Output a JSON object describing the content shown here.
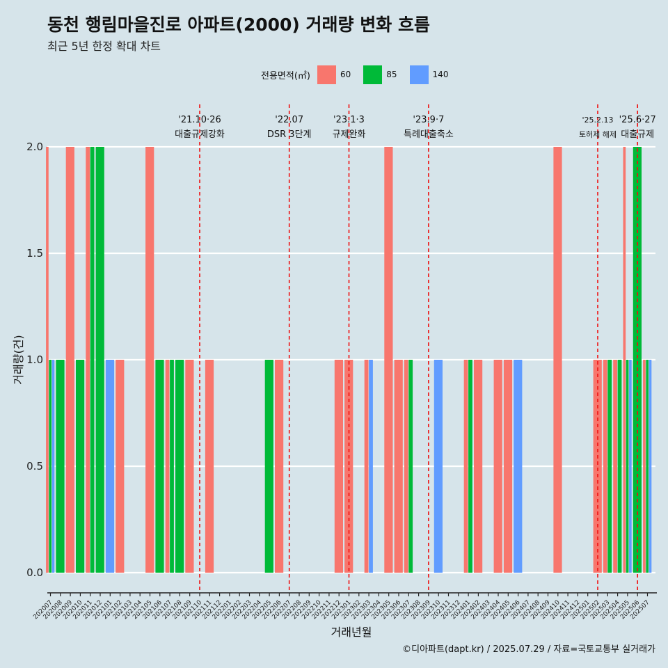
{
  "title": "동천 행림마을진로 아파트(2000) 거래량 변화 흐름",
  "subtitle": "최근 5년 한정 확대 차트",
  "caption": "©디아파트(dapt.kr) / 2025.07.29 / 자료=국토교통부 실거래가",
  "legend": {
    "title": "전용면적(㎡)",
    "items": [
      {
        "label": "60",
        "color": "#f8766d"
      },
      {
        "label": "85",
        "color": "#00ba38"
      },
      {
        "label": "140",
        "color": "#619cff"
      }
    ]
  },
  "chart_data": {
    "type": "bar",
    "xlabel": "거래년월",
    "ylabel": "거래량(건)",
    "ylim": [
      0,
      2
    ],
    "yticks": [
      0.0,
      0.5,
      1.0,
      1.5,
      2.0
    ],
    "ytick_labels": [
      "0.0",
      "0.5",
      "1.0",
      "1.5",
      "2.0"
    ],
    "categories": [
      "202007",
      "202008",
      "202009",
      "202010",
      "202011",
      "202012",
      "202101",
      "202102",
      "202103",
      "202104",
      "202105",
      "202106",
      "202107",
      "202108",
      "202109",
      "202110",
      "202111",
      "202112",
      "202201",
      "202202",
      "202203",
      "202204",
      "202205",
      "202206",
      "202207",
      "202208",
      "202209",
      "202210",
      "202211",
      "202212",
      "202301",
      "202302",
      "202303",
      "202304",
      "202305",
      "202306",
      "202307",
      "202308",
      "202309",
      "202310",
      "202311",
      "202312",
      "202401",
      "202402",
      "202403",
      "202404",
      "202405",
      "202406",
      "202407",
      "202408",
      "202409",
      "202410",
      "202411",
      "202412",
      "202501",
      "202502",
      "202503",
      "202504",
      "202505",
      "202506",
      "202507"
    ],
    "series": [
      {
        "name": "60",
        "color": "#f8766d",
        "values": [
          2,
          0,
          2,
          0,
          2,
          0,
          0,
          1,
          0,
          0,
          2,
          0,
          1,
          0,
          1,
          0,
          1,
          0,
          0,
          0,
          0,
          0,
          0,
          1,
          0,
          0,
          0,
          0,
          0,
          1,
          1,
          0,
          1,
          0,
          2,
          1,
          1,
          0,
          0,
          0,
          0,
          0,
          1,
          1,
          0,
          1,
          1,
          0,
          0,
          0,
          0,
          2,
          0,
          0,
          0,
          1,
          1,
          1,
          2,
          0,
          1
        ]
      },
      {
        "name": "85",
        "color": "#00ba38",
        "values": [
          1,
          1,
          0,
          1,
          2,
          2,
          0,
          0,
          0,
          0,
          0,
          1,
          1,
          1,
          0,
          0,
          0,
          0,
          0,
          0,
          0,
          0,
          1,
          0,
          0,
          0,
          0,
          0,
          0,
          0,
          0,
          0,
          0,
          0,
          0,
          0,
          1,
          0,
          0,
          0,
          0,
          0,
          1,
          0,
          0,
          0,
          0,
          0,
          0,
          0,
          0,
          0,
          0,
          0,
          0,
          0,
          1,
          1,
          1,
          2,
          1
        ]
      },
      {
        "name": "140",
        "color": "#619cff",
        "values": [
          1,
          0,
          0,
          0,
          0,
          0,
          1,
          0,
          0,
          0,
          0,
          0,
          0,
          0,
          0,
          0,
          0,
          0,
          0,
          0,
          0,
          0,
          0,
          0,
          0,
          0,
          0,
          0,
          0,
          0,
          0,
          0,
          1,
          0,
          0,
          0,
          0,
          0,
          0,
          1,
          0,
          0,
          0,
          0,
          0,
          0,
          0,
          1,
          0,
          0,
          0,
          0,
          0,
          0,
          0,
          0,
          0,
          0,
          1,
          0,
          1
        ]
      }
    ],
    "events": [
      {
        "date": "202110",
        "line1": "'21.10·26",
        "line2": "대출규제강화"
      },
      {
        "date": "202207",
        "line1": "'22.07",
        "line2": "DSR 3단계"
      },
      {
        "date": "202301",
        "line1": "'23.1·3",
        "line2": "규제완화"
      },
      {
        "date": "202309",
        "line1": "'23.9·7",
        "line2": "특례대출축소"
      },
      {
        "date": "202502",
        "line1": "'25.2.13",
        "line2": "토허제 해제"
      },
      {
        "date": "202506",
        "line1": "'25.6·27",
        "line2": "대출규제"
      }
    ]
  }
}
